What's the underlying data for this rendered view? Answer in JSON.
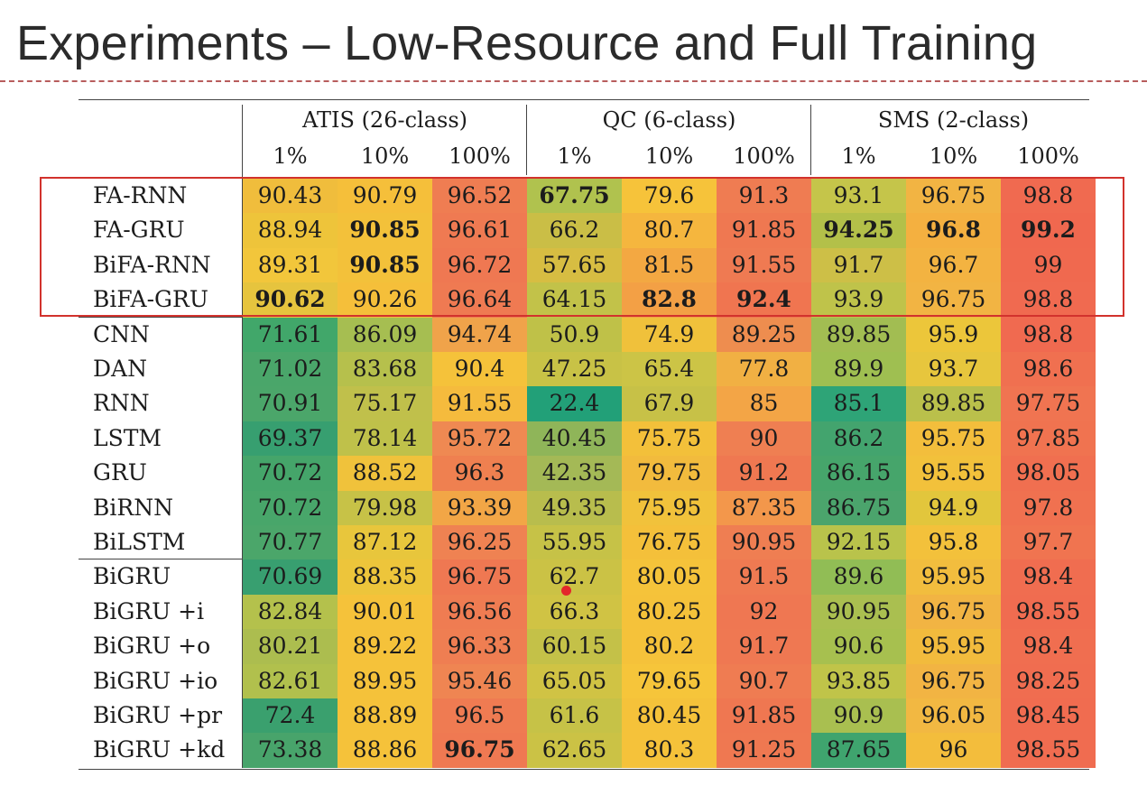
{
  "slide": {
    "title": "Experiments – Low-Resource and Full Training"
  },
  "table": {
    "groups": [
      {
        "label": "ATIS (26-class)",
        "subcols": [
          "1%",
          "10%",
          "100%"
        ]
      },
      {
        "label": "QC (6-class)",
        "subcols": [
          "1%",
          "10%",
          "100%"
        ]
      },
      {
        "label": "SMS (2-class)",
        "subcols": [
          "1%",
          "10%",
          "100%"
        ]
      }
    ],
    "rows": [
      {
        "model": "FA-RNN",
        "values": [
          "90.43",
          "90.79",
          "96.52",
          "67.75",
          "79.6",
          "91.3",
          "93.1",
          "96.75",
          "98.8"
        ],
        "bold": [
          3
        ]
      },
      {
        "model": "FA-GRU",
        "values": [
          "88.94",
          "90.85",
          "96.61",
          "66.2",
          "80.7",
          "91.85",
          "94.25",
          "96.8",
          "99.2"
        ],
        "bold": [
          1,
          6,
          7,
          8
        ]
      },
      {
        "model": "BiFA-RNN",
        "values": [
          "89.31",
          "90.85",
          "96.72",
          "57.65",
          "81.5",
          "91.55",
          "91.7",
          "96.7",
          "99"
        ],
        "bold": [
          1
        ]
      },
      {
        "model": "BiFA-GRU",
        "values": [
          "90.62",
          "90.26",
          "96.64",
          "64.15",
          "82.8",
          "92.4",
          "93.9",
          "96.75",
          "98.8"
        ],
        "bold": [
          0,
          4,
          5
        ]
      },
      {
        "model": "CNN",
        "values": [
          "71.61",
          "86.09",
          "94.74",
          "50.9",
          "74.9",
          "89.25",
          "89.85",
          "95.9",
          "98.8"
        ],
        "bold": []
      },
      {
        "model": "DAN",
        "values": [
          "71.02",
          "83.68",
          "90.4",
          "47.25",
          "65.4",
          "77.8",
          "89.9",
          "93.7",
          "98.6"
        ],
        "bold": []
      },
      {
        "model": "RNN",
        "values": [
          "70.91",
          "75.17",
          "91.55",
          "22.4",
          "67.9",
          "85",
          "85.1",
          "89.85",
          "97.75"
        ],
        "bold": []
      },
      {
        "model": "LSTM",
        "values": [
          "69.37",
          "78.14",
          "95.72",
          "40.45",
          "75.75",
          "90",
          "86.2",
          "95.75",
          "97.85"
        ],
        "bold": []
      },
      {
        "model": "GRU",
        "values": [
          "70.72",
          "88.52",
          "96.3",
          "42.35",
          "79.75",
          "91.2",
          "86.15",
          "95.55",
          "98.05"
        ],
        "bold": []
      },
      {
        "model": "BiRNN",
        "values": [
          "70.72",
          "79.98",
          "93.39",
          "49.35",
          "75.95",
          "87.35",
          "86.75",
          "94.9",
          "97.8"
        ],
        "bold": []
      },
      {
        "model": "BiLSTM",
        "values": [
          "70.77",
          "87.12",
          "96.25",
          "55.95",
          "76.75",
          "90.95",
          "92.15",
          "95.8",
          "97.7"
        ],
        "bold": []
      },
      {
        "model": "BiGRU",
        "values": [
          "70.69",
          "88.35",
          "96.75",
          "62.7",
          "80.05",
          "91.5",
          "89.6",
          "95.95",
          "98.4"
        ],
        "bold": []
      },
      {
        "model": "BiGRU +i",
        "values": [
          "82.84",
          "90.01",
          "96.56",
          "66.3",
          "80.25",
          "92",
          "90.95",
          "96.75",
          "98.55"
        ],
        "bold": []
      },
      {
        "model": "BiGRU +o",
        "values": [
          "80.21",
          "89.22",
          "96.33",
          "60.15",
          "80.2",
          "91.7",
          "90.6",
          "95.95",
          "98.4"
        ],
        "bold": []
      },
      {
        "model": "BiGRU +io",
        "values": [
          "82.61",
          "89.95",
          "95.46",
          "65.05",
          "79.65",
          "90.7",
          "93.85",
          "96.75",
          "98.25"
        ],
        "bold": []
      },
      {
        "model": "BiGRU +pr",
        "values": [
          "72.4",
          "88.89",
          "96.5",
          "61.6",
          "80.45",
          "91.85",
          "90.9",
          "96.05",
          "98.45"
        ],
        "bold": []
      },
      {
        "model": "BiGRU +kd",
        "values": [
          "73.38",
          "88.86",
          "96.75",
          "62.65",
          "80.3",
          "91.25",
          "87.65",
          "96",
          "98.55"
        ],
        "bold": [
          2
        ]
      }
    ],
    "heatmap_colors": [
      [
        "#f0bd3c",
        "#f5bf3a",
        "#ef7d52",
        "#b0c24e",
        "#f6c33a",
        "#ef7c52",
        "#c5c54a",
        "#f2b443",
        "#f06a50"
      ],
      [
        "#eec43a",
        "#f3c13a",
        "#ef7a52",
        "#cabe46",
        "#f5b63e",
        "#ef7851",
        "#b3c049",
        "#f4b040",
        "#f0684f"
      ],
      [
        "#f2c63b",
        "#f3c13a",
        "#ef7852",
        "#d7bd42",
        "#f3a842",
        "#ef7a52",
        "#cdbf47",
        "#f3b341",
        "#f0694f"
      ],
      [
        "#e6c43e",
        "#f5bf3a",
        "#ef7a52",
        "#c2c249",
        "#f3a045",
        "#f07550",
        "#bfc34a",
        "#f2b443",
        "#f06a50"
      ],
      [
        "#41a76a",
        "#a6be51",
        "#f0a34a",
        "#bfc148",
        "#f0c13b",
        "#ee8d4f",
        "#a2bd52",
        "#ecc63a",
        "#f06a50"
      ],
      [
        "#4aa66a",
        "#b6c04c",
        "#f5c23a",
        "#c8c246",
        "#ccc446",
        "#f1b043",
        "#9fbf51",
        "#e7c63d",
        "#f07050"
      ],
      [
        "#4ba66a",
        "#c0c04b",
        "#f5bb3d",
        "#22a078",
        "#c7c147",
        "#f3a546",
        "#2ea477",
        "#bac04b",
        "#f07451"
      ],
      [
        "#379f70",
        "#bfc14a",
        "#ef8952",
        "#8fb559",
        "#f3c03a",
        "#ef7f52",
        "#43a46e",
        "#f3be3c",
        "#f07350"
      ],
      [
        "#45a56a",
        "#f0c23b",
        "#ef8050",
        "#a4b956",
        "#f2bb3d",
        "#ef7851",
        "#46a56b",
        "#f2c13b",
        "#f06f50"
      ],
      [
        "#48a66a",
        "#c7c247",
        "#f2a646",
        "#b8bd4d",
        "#f1c23b",
        "#f3974b",
        "#4ba46c",
        "#e2c63c",
        "#f07150"
      ],
      [
        "#4ba66a",
        "#e8c63c",
        "#ef8252",
        "#c6c247",
        "#f4c03a",
        "#ef7e52",
        "#b9c34b",
        "#f3c13b",
        "#f07450"
      ],
      [
        "#389f70",
        "#edc53b",
        "#ef7852",
        "#cbc245",
        "#f5c33a",
        "#ef7a52",
        "#91bd55",
        "#f2bd3e",
        "#f06d50"
      ],
      [
        "#b4c14c",
        "#f5c23a",
        "#ef7c52",
        "#d0c344",
        "#f5c23a",
        "#ef7752",
        "#aabf50",
        "#f2b443",
        "#f06c50"
      ],
      [
        "#acbd4f",
        "#f5c23a",
        "#ef7e52",
        "#c4c148",
        "#f5c23a",
        "#ef7852",
        "#a7c04f",
        "#f2bb3d",
        "#f06e50"
      ],
      [
        "#b1c04d",
        "#f5c23a",
        "#ef8552",
        "#d0c344",
        "#f6c53a",
        "#ef7c52",
        "#c0c449",
        "#f2b443",
        "#f06d50"
      ],
      [
        "#3aa06e",
        "#f5c23a",
        "#ef7b52",
        "#c6c247",
        "#f5c23a",
        "#ef7751",
        "#a9bf50",
        "#f2b842",
        "#f06c50"
      ],
      [
        "#48a46b",
        "#f5c23a",
        "#ef7952",
        "#cbc245",
        "#f5c23a",
        "#ef7851",
        "#3fa46e",
        "#f3bd3c",
        "#f06c50"
      ]
    ]
  }
}
